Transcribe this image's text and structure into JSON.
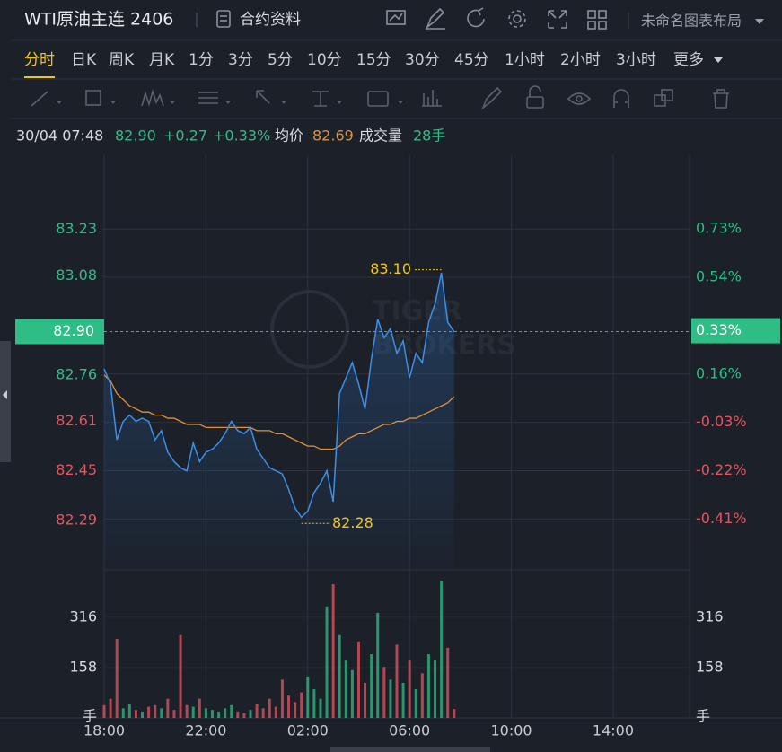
{
  "header": {
    "title": "WTI原油主连 2406",
    "contract_info": "合约资料",
    "layout_name": "未命名图表布局"
  },
  "periods": {
    "items": [
      "分时",
      "日K",
      "周K",
      "月K",
      "1分",
      "3分",
      "5分",
      "10分",
      "15分",
      "30分",
      "45分",
      "1小时",
      "2小时",
      "3小时",
      "更多"
    ],
    "active": 0
  },
  "watermark": [
    "TIGER",
    "BROKERS"
  ],
  "chart_data": {
    "type": "line",
    "info": {
      "time": "30/04 07:48",
      "price": "82.90",
      "change": "+0.27",
      "change_pct": "+0.33%",
      "avg_value": "82.69",
      "volume_value": "28手"
    },
    "x": [
      "18:00",
      "18:15",
      "18:30",
      "18:45",
      "19:00",
      "19:15",
      "19:30",
      "19:45",
      "20:00",
      "20:15",
      "20:30",
      "20:45",
      "21:00",
      "21:15",
      "21:30",
      "21:45",
      "22:00",
      "22:15",
      "22:30",
      "22:45",
      "23:00",
      "23:15",
      "23:30",
      "23:45",
      "00:00",
      "00:15",
      "00:30",
      "00:45",
      "01:00",
      "01:15",
      "01:30",
      "01:45",
      "02:00",
      "02:15",
      "02:30",
      "02:45",
      "03:00",
      "03:15",
      "03:30",
      "03:45",
      "04:00",
      "04:15",
      "04:30",
      "04:45",
      "05:00",
      "05:15",
      "05:30",
      "05:45",
      "06:00",
      "06:15",
      "06:30",
      "06:45",
      "07:00",
      "07:15",
      "07:30",
      "07:45"
    ],
    "xlim": [
      "18:00",
      "17:00"
    ],
    "xticks": [
      "18:00",
      "22:00",
      "02:00",
      "06:00",
      "10:00",
      "14:00"
    ],
    "series": [
      {
        "color": "#3d8fe8",
        "values": [
          82.78,
          82.73,
          82.55,
          82.61,
          82.63,
          82.61,
          82.62,
          82.61,
          82.55,
          82.58,
          82.51,
          82.48,
          82.46,
          82.45,
          82.54,
          82.48,
          82.51,
          82.52,
          82.54,
          82.57,
          82.61,
          82.58,
          82.57,
          82.59,
          82.52,
          82.49,
          82.46,
          82.45,
          82.44,
          82.39,
          82.33,
          82.3,
          82.32,
          82.38,
          82.41,
          82.45,
          82.35,
          82.7,
          82.75,
          82.8,
          82.73,
          82.65,
          82.81,
          82.94,
          82.88,
          82.91,
          82.83,
          82.87,
          82.75,
          82.83,
          82.8,
          82.93,
          82.99,
          83.09,
          82.93,
          82.9
        ]
      },
      {
        "name": "均价",
        "color": "#e0913c",
        "values": [
          82.76,
          82.74,
          82.7,
          82.68,
          82.66,
          82.65,
          82.64,
          82.64,
          82.63,
          82.63,
          82.62,
          82.62,
          82.61,
          82.6,
          82.6,
          82.6,
          82.59,
          82.59,
          82.59,
          82.59,
          82.59,
          82.59,
          82.59,
          82.59,
          82.58,
          82.58,
          82.58,
          82.57,
          82.57,
          82.56,
          82.55,
          82.54,
          82.53,
          82.53,
          82.52,
          82.52,
          82.52,
          82.53,
          82.55,
          82.56,
          82.57,
          82.57,
          82.58,
          82.59,
          82.6,
          82.6,
          82.61,
          82.61,
          82.62,
          82.62,
          82.63,
          82.64,
          82.65,
          82.66,
          82.67,
          82.69
        ]
      },
      {
        "name": "成交量",
        "axis": "volume",
        "values": [
          40,
          60,
          248,
          30,
          45,
          25,
          20,
          35,
          40,
          30,
          60,
          25,
          260,
          40,
          35,
          60,
          30,
          25,
          20,
          30,
          40,
          20,
          15,
          25,
          45,
          30,
          60,
          35,
          120,
          70,
          50,
          80,
          130,
          90,
          60,
          350,
          420,
          260,
          180,
          150,
          240,
          110,
          200,
          330,
          160,
          120,
          230,
          110,
          180,
          90,
          140,
          200,
          180,
          430,
          220,
          28
        ]
      }
    ],
    "up_color": "#2ebd85",
    "down_color": "#e35561",
    "ylim": [
      82.13,
      83.47
    ],
    "yticks": [
      83.23,
      83.08,
      82.76,
      82.61,
      82.45,
      82.29
    ],
    "y2lim": [
      -0.61,
      1.02
    ],
    "y2ticks": [
      {
        "value": 0.73,
        "label": "0.73%"
      },
      {
        "value": 0.54,
        "label": "0.54%"
      },
      {
        "value": 0.16,
        "label": "0.16%"
      },
      {
        "value": -0.03,
        "label": "-0.03%"
      },
      {
        "value": -0.22,
        "label": "-0.22%"
      },
      {
        "value": -0.41,
        "label": "-0.41%"
      }
    ],
    "volume_ylim": [
      0,
      465
    ],
    "volume_yticks": [
      316,
      158
    ],
    "volume_unit": "手",
    "last_price": {
      "value": 82.9,
      "label": "82.90"
    },
    "last_pct": {
      "value": 0.33,
      "label": "0.33%"
    },
    "max_marker": {
      "x": "07:15",
      "value": 83.1,
      "label": "83.10"
    },
    "min_marker": {
      "x": "01:45",
      "value": 82.28,
      "label": "82.28"
    },
    "grid": true
  }
}
